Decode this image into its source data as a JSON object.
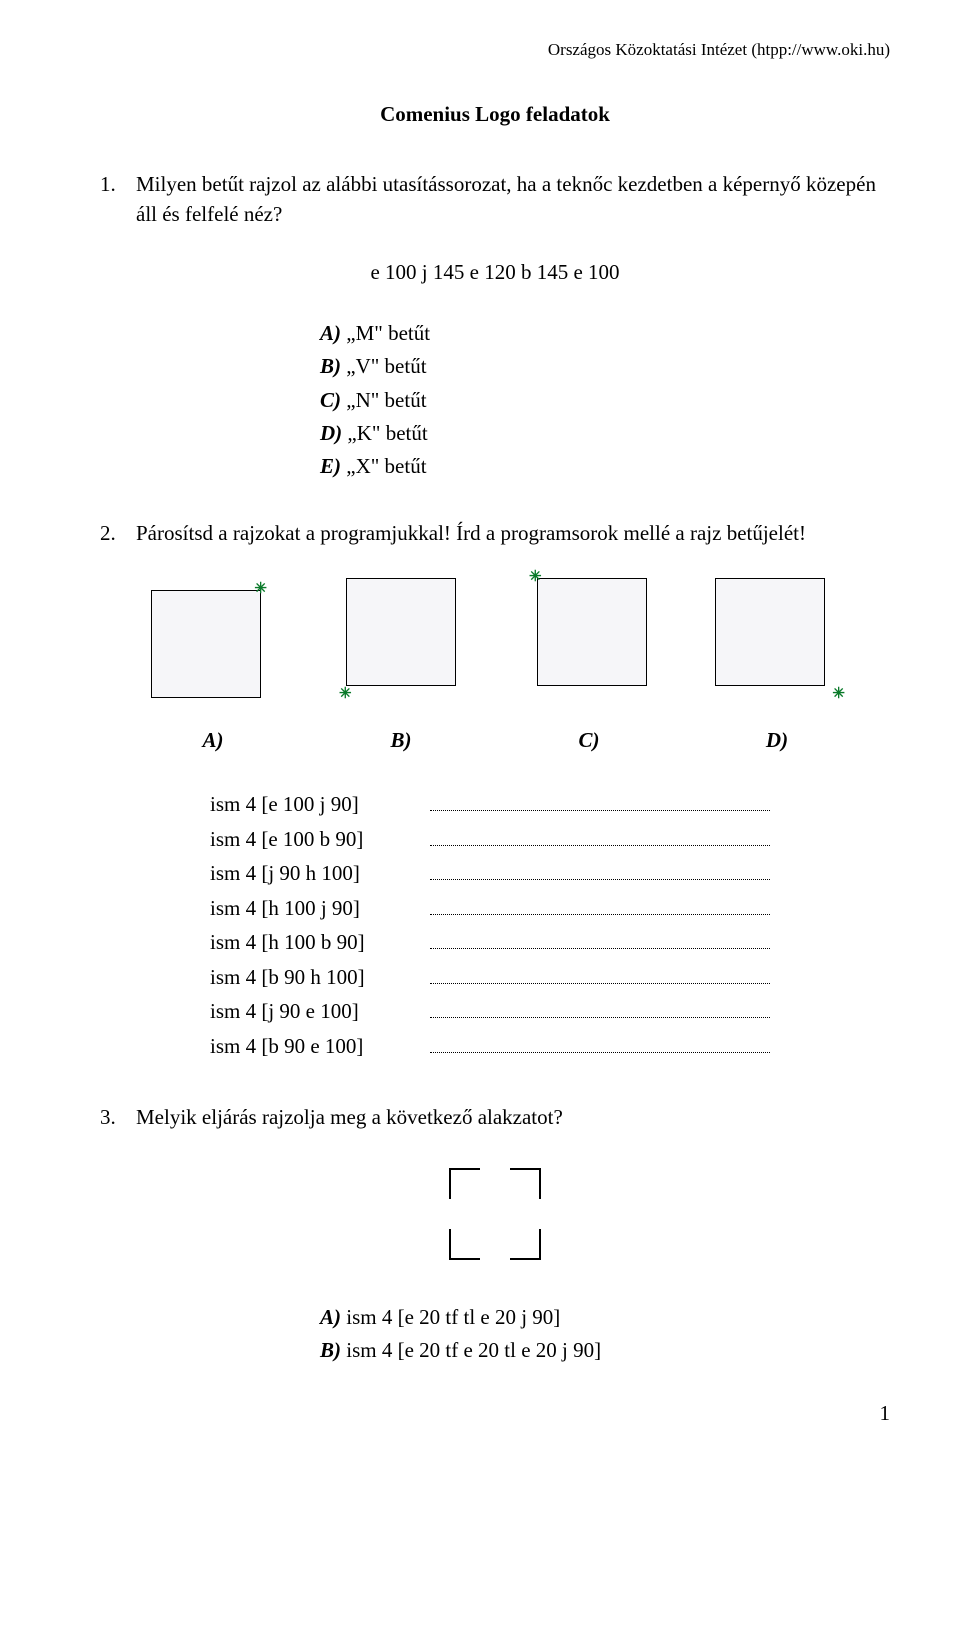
{
  "header": "Országos Közoktatási Intézet (htpp://www.oki.hu)",
  "title": "Comenius Logo feladatok",
  "q1": {
    "num": "1.",
    "text": "Milyen betűt rajzol az alábbi utasítássorozat, ha a teknőc kezdetben a képernyő közepén áll és felfelé néz?",
    "code": "e 100 j 145 e 120 b 145 e 100",
    "options": {
      "a": {
        "label": "A)",
        "text": "„M\" betűt"
      },
      "b": {
        "label": "B)",
        "text": "„V\" betűt"
      },
      "c": {
        "label": "C)",
        "text": "„N\" betűt"
      },
      "d": {
        "label": "D)",
        "text": "„K\" betűt"
      },
      "e": {
        "label": "E)",
        "text": "„X\" betűt"
      }
    }
  },
  "q2": {
    "num": "2.",
    "text": "Párosítsd a rajzokat a programjukkal! Írd a programsorok mellé a rajz betűjelét!",
    "labels": {
      "a": "A)",
      "b": "B)",
      "c": "C)",
      "d": "D)"
    },
    "progs": [
      "ism 4 [e 100 j 90]",
      "ism 4 [e 100 b 90]",
      "ism 4 [j 90 h 100]",
      "ism 4 [h 100 j 90]",
      "ism 4 [h 100 b 90]",
      "ism 4 [b 90 h 100]",
      "ism 4 [j 90 e 100]",
      "ism 4 [b 90 e 100]"
    ]
  },
  "q3": {
    "num": "3.",
    "text": "Melyik eljárás rajzolja meg a következő alakzatot?",
    "options": {
      "a": {
        "label": "A)",
        "text": "ism 4 [e 20 tf tl e 20 j 90]"
      },
      "b": {
        "label": "B)",
        "text": "ism 4 [e 20 tf e 20 tl e 20 j 90]"
      }
    },
    "shape": {
      "size": 90,
      "seg": 30,
      "stroke": "#000000",
      "stroke_width": 2
    }
  },
  "page_number": "1",
  "colors": {
    "text": "#000000",
    "turtle": "#0a7a2a",
    "square_fill": "#f6f6f9",
    "background": "#ffffff"
  }
}
